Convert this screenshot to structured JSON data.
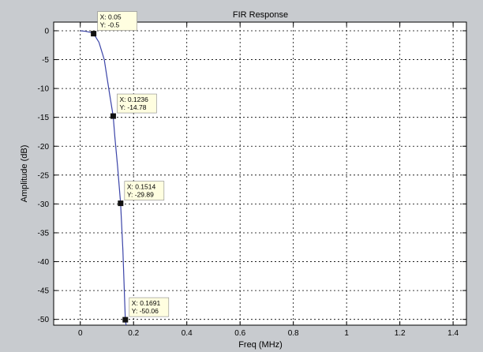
{
  "chart_data": {
    "type": "line",
    "title": "FIR Response",
    "xlabel": "Freq (MHz)",
    "ylabel": "Amplitude (dB)",
    "xlim": [
      -0.1,
      1.45
    ],
    "ylim": [
      -51,
      1.5
    ],
    "xticks": [
      0,
      0.2,
      0.4,
      0.6,
      0.8,
      1,
      1.2,
      1.4
    ],
    "xtick_labels": [
      "0",
      "0.2",
      "0.4",
      "0.6",
      "0.8",
      "1",
      "1.2",
      "1.4"
    ],
    "yticks": [
      0,
      -5,
      -10,
      -15,
      -20,
      -25,
      -30,
      -35,
      -40,
      -45,
      -50
    ],
    "ytick_labels": [
      "0",
      "-5",
      "-10",
      "-15",
      "-20",
      "-25",
      "-30",
      "-35",
      "-40",
      "-45",
      "-50"
    ],
    "grid": true,
    "colors": {
      "plot_background": "#ffffff",
      "figure_background": "#c8cbcf",
      "line": "#3b44a8",
      "marker": "#111111",
      "datatip_fill": "#fffee0"
    },
    "series": [
      {
        "x": [
          0,
          0.02,
          0.04,
          0.05,
          0.07,
          0.09,
          0.1,
          0.11,
          0.1236,
          0.13,
          0.14,
          0.1514,
          0.16,
          0.1691,
          0.172
        ],
        "y": [
          0,
          -0.1,
          -0.3,
          -0.5,
          -2,
          -5,
          -8,
          -11,
          -14.78,
          -18.5,
          -23.5,
          -29.89,
          -38,
          -50.06,
          -51
        ]
      }
    ],
    "datatips": [
      {
        "x": 0.05,
        "y": -0.5,
        "x_text": "X: 0.05",
        "y_text": "Y: -0.5",
        "side": "right-up"
      },
      {
        "x": 0.1236,
        "y": -14.78,
        "x_text": "X: 0.1236",
        "y_text": "Y: -14.78",
        "side": "right-up"
      },
      {
        "x": 0.1514,
        "y": -29.89,
        "x_text": "X: 0.1514",
        "y_text": "Y: -29.89",
        "side": "right-up"
      },
      {
        "x": 0.1691,
        "y": -50.06,
        "x_text": "X: 0.1691",
        "y_text": "Y: -50.06",
        "side": "right-up"
      }
    ]
  }
}
